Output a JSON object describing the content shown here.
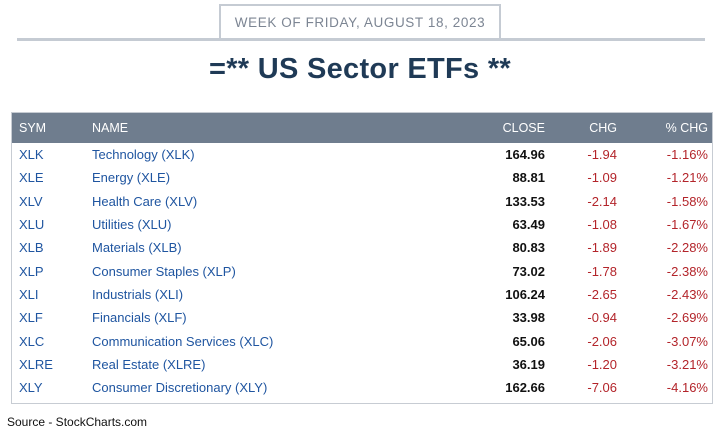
{
  "header": {
    "week_label": "WEEK OF FRIDAY, AUGUST 18, 2023",
    "title": "=** US Sector ETFs **"
  },
  "table": {
    "columns": {
      "sym": "SYM",
      "name": "NAME",
      "close": "CLOSE",
      "chg": "CHG",
      "pct_chg": "% CHG"
    },
    "rows": [
      {
        "sym": "XLK",
        "name": "Technology (XLK)",
        "close": "164.96",
        "chg": "-1.94",
        "pct": "-1.16%"
      },
      {
        "sym": "XLE",
        "name": "Energy (XLE)",
        "close": "88.81",
        "chg": "-1.09",
        "pct": "-1.21%"
      },
      {
        "sym": "XLV",
        "name": "Health Care (XLV)",
        "close": "133.53",
        "chg": "-2.14",
        "pct": "-1.58%"
      },
      {
        "sym": "XLU",
        "name": "Utilities (XLU)",
        "close": "63.49",
        "chg": "-1.08",
        "pct": "-1.67%"
      },
      {
        "sym": "XLB",
        "name": "Materials (XLB)",
        "close": "80.83",
        "chg": "-1.89",
        "pct": "-2.28%"
      },
      {
        "sym": "XLP",
        "name": "Consumer Staples (XLP)",
        "close": "73.02",
        "chg": "-1.78",
        "pct": "-2.38%"
      },
      {
        "sym": "XLI",
        "name": "Industrials (XLI)",
        "close": "106.24",
        "chg": "-2.65",
        "pct": "-2.43%"
      },
      {
        "sym": "XLF",
        "name": "Financials (XLF)",
        "close": "33.98",
        "chg": "-0.94",
        "pct": "-2.69%"
      },
      {
        "sym": "XLC",
        "name": "Communication Services (XLC)",
        "close": "65.06",
        "chg": "-2.06",
        "pct": "-3.07%"
      },
      {
        "sym": "XLRE",
        "name": "Real Estate (XLRE)",
        "close": "36.19",
        "chg": "-1.20",
        "pct": "-3.21%"
      },
      {
        "sym": "XLY",
        "name": "Consumer Discretionary (XLY)",
        "close": "162.66",
        "chg": "-7.06",
        "pct": "-4.16%"
      }
    ]
  },
  "footer": {
    "source": "Source - StockCharts.com"
  },
  "colors": {
    "title": "#1f3a56",
    "header_bg": "#6f7d8e",
    "link_blue": "#1f55a0",
    "negative_red": "#b3242a"
  }
}
